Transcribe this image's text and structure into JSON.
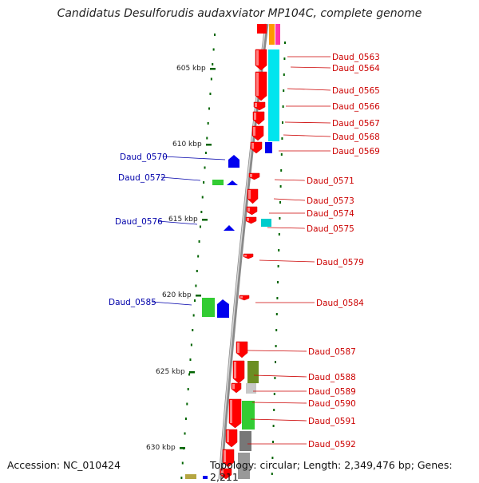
{
  "title": "Candidatus Desulforudis audaxviator MP104C, complete genome",
  "footer": {
    "accession": "Accession: NC_010424",
    "summary": "Topology: circular; Length: 2,349,476 bp; Genes: 2,211"
  },
  "colors": {
    "forward_cds": "#ff0000",
    "reverse_cds": "#0000ee",
    "right_labels": "#cc0000",
    "left_labels": "#0000aa",
    "backbone": "#808080",
    "cog_cyan": "#00e5ee",
    "cog_green": "#33cc33",
    "cog_olive": "#6b8e23",
    "cog_gray": "#777777",
    "cog_lightgray": "#c8c8c8",
    "tick": "#006400"
  },
  "position_ticks": [
    "605 kbp",
    "610 kbp",
    "615 kbp",
    "620 kbp",
    "625 kbp",
    "630 kbp"
  ],
  "right_labels": [
    "Daud_0563",
    "Daud_0564",
    "Daud_0565",
    "Daud_0566",
    "Daud_0567",
    "Daud_0568",
    "Daud_0569",
    "Daud_0571",
    "Daud_0573",
    "Daud_0574",
    "Daud_0575",
    "Daud_0579",
    "Daud_0584",
    "Daud_0587",
    "Daud_0588",
    "Daud_0589",
    "Daud_0590",
    "Daud_0591",
    "Daud_0592"
  ],
  "left_labels": [
    "Daud_0570",
    "Daud_0572",
    "Daud_0576",
    "Daud_0585"
  ]
}
